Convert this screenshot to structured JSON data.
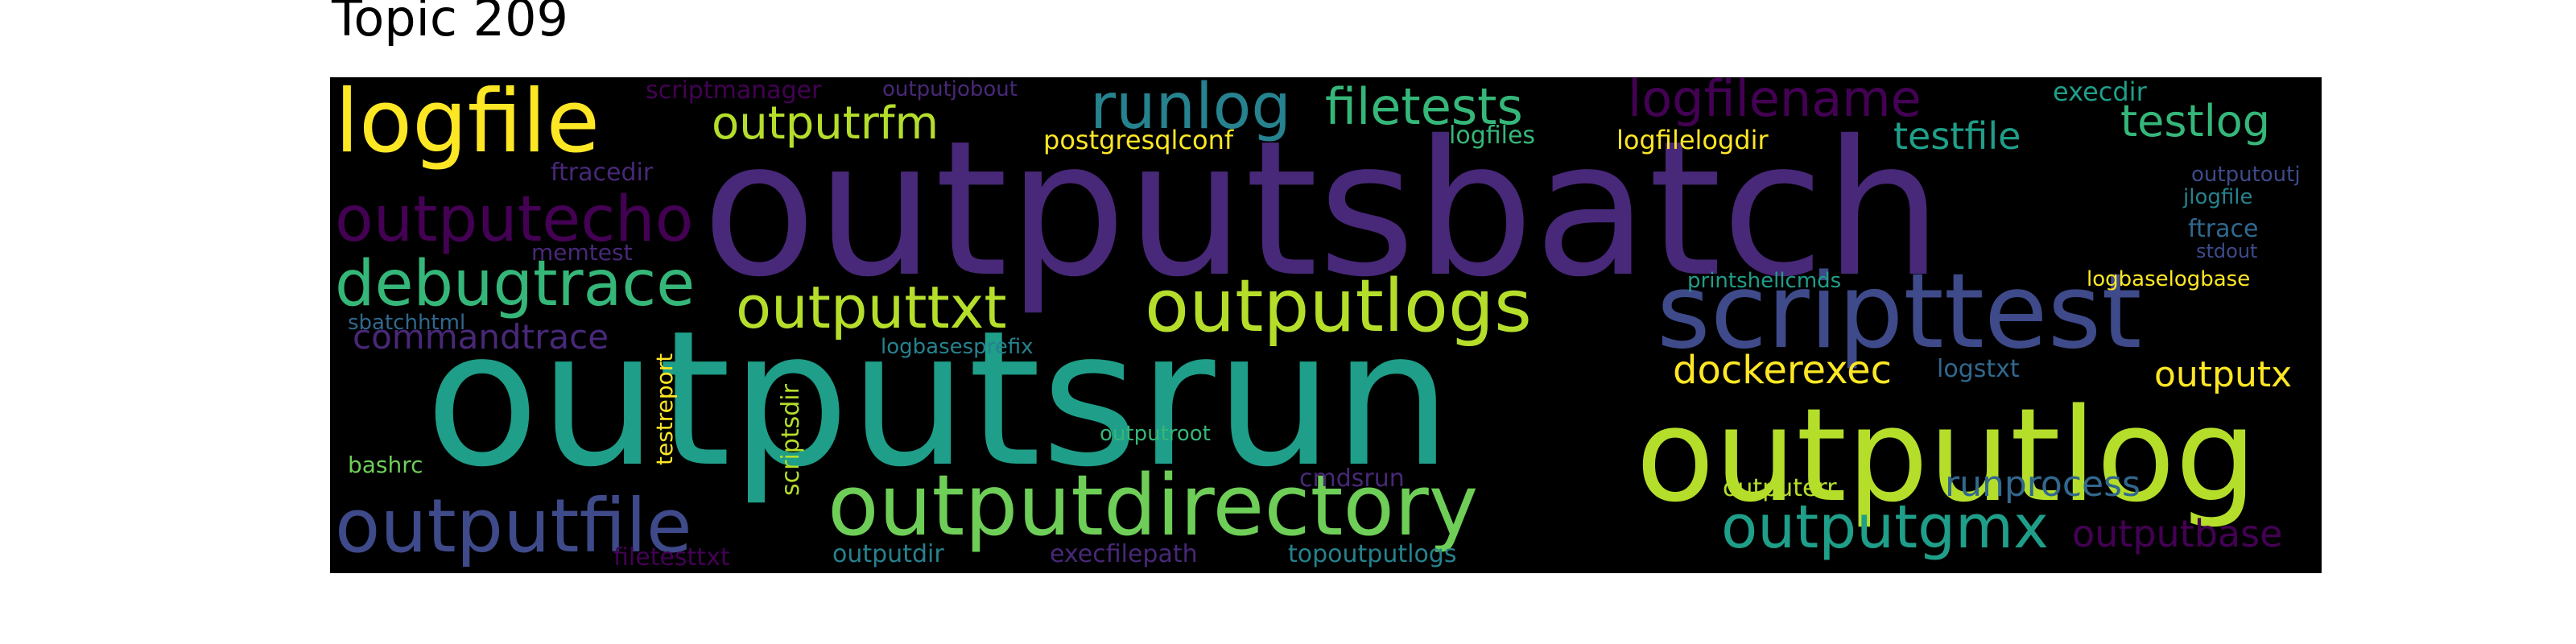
{
  "title": "Topic 209",
  "colors": {
    "background": "#000000",
    "purple_dark": "#440154",
    "purple": "#482878",
    "indigo": "#3e4a89",
    "blue": "#31688e",
    "teal_blue": "#26828e",
    "teal": "#1f9e89",
    "green": "#35b779",
    "light_green": "#6ece58",
    "yellow_green": "#b5de2b",
    "yellow": "#fde725"
  },
  "words": {
    "outputsbatch": "outputsbatch",
    "outputsrun": "outputsrun",
    "outputlog": "outputlog",
    "scripttest": "scripttest",
    "logfile": "logfile",
    "outputdirectory": "outputdirectory",
    "outputfile": "outputfile",
    "outputlogs": "outputlogs",
    "debugtrace": "debugtrace",
    "outputecho": "outputecho",
    "outputtxt": "outputtxt",
    "outputgmx": "outputgmx",
    "runlog": "runlog",
    "filetests": "filetests",
    "logfilename": "logfilename",
    "outputrfm": "outputrfm",
    "testlog": "testlog",
    "testfile": "testfile",
    "dockerexec": "dockerexec",
    "runprocess": "runprocess",
    "outputbase": "outputbase",
    "commandtrace": "commandtrace",
    "outputx": "outputx",
    "postgresqlconf": "postgresqlconf",
    "logfilelogdir": "logfilelogdir",
    "logfiles": "logfiles",
    "execdir": "execdir",
    "scriptmanager": "scriptmanager",
    "outputjobout": "outputjobout",
    "ftracedir": "ftracedir",
    "memtest": "memtest",
    "sbatchhtml": "sbatchhtml",
    "testreport": "testreport",
    "scriptsdir": "scriptsdir",
    "logbasesprefix": "logbasesprefix",
    "printshellcmds": "printshellcmds",
    "logbaselogbase": "logbaselogbase",
    "outputoutj": "outputoutj",
    "jlogfile": "jlogfile",
    "ftrace": "ftrace",
    "stdout": "stdout",
    "logstxt": "logstxt",
    "outputroot": "outputroot",
    "cmdsrun": "cmdsrun",
    "outputerr": "outputerr",
    "bashrc": "bashrc",
    "filetesttxt": "filetesttxt",
    "outputdir": "outputdir",
    "execfilepath": "execfilepath",
    "topoutputlogs": "topoutputlogs"
  }
}
